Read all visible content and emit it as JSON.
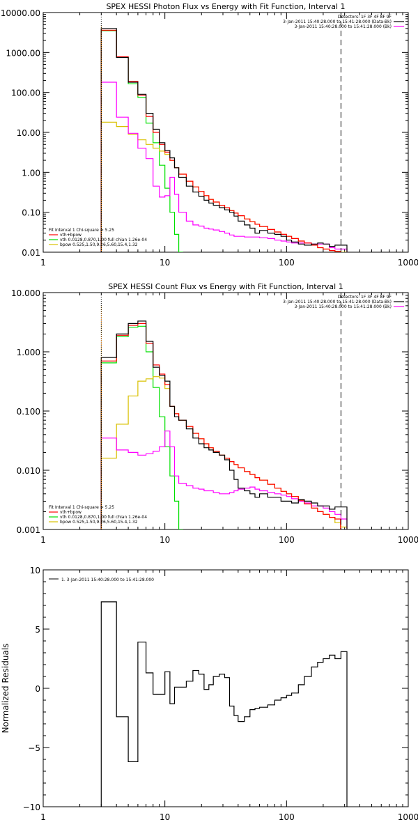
{
  "colors": {
    "data": "#000000",
    "total": "#ff0000",
    "vth": "#00e000",
    "bpow": "#d9c000",
    "background": "#ff00ff",
    "marker_start": "#ff8800"
  },
  "chart_data": [
    {
      "type": "line",
      "title": "SPEX HESSI Photon Flux vs Energy with Fit Function, Interval 1",
      "xscale": "log",
      "yscale": "log",
      "xlim": [
        1,
        1000
      ],
      "ylim": [
        0.01,
        10000
      ],
      "xticks": [
        1,
        10,
        100,
        1000
      ],
      "xtick_labels": [
        "1",
        "10",
        "100",
        "1000"
      ],
      "yticks": [
        0.01,
        0.1,
        1,
        10,
        100,
        1000,
        10000
      ],
      "ytick_labels": [
        "0.01",
        "0.10",
        "1.00",
        "10.00",
        "100.00",
        "1000.00",
        "10000.00"
      ],
      "vlines": [
        {
          "x": 3,
          "style": "dotted"
        },
        {
          "x": 280,
          "style": "dashed"
        }
      ],
      "legend_top": [
        "Detectors: 1F 3F 4F 8F 9F",
        "3-Jan-2011 15:40:28.000 to 15:41:28.000 (Data-Bk)",
        "3-Jan-2011 15:40:28.000 to 15:41:28.000 (Bk)"
      ],
      "legend_bottom": [
        "Fit Interval 1    Chi-square = 5.25",
        "vth+bpow",
        "vth 0.0128,0.870,1.00  full chian 1.26e-04",
        "bpow 0.525,1.50,9.26,5.60,15.4,1.32"
      ],
      "series": [
        {
          "name": "Data-Bk",
          "color": "data",
          "x": [
            3,
            4,
            5,
            6,
            7,
            8,
            9,
            10,
            11,
            12,
            13,
            15,
            17,
            19,
            21,
            23,
            25,
            28,
            31,
            34,
            37,
            40,
            45,
            50,
            55,
            60,
            70,
            80,
            90,
            100,
            110,
            125,
            140,
            160,
            180,
            200,
            225,
            250,
            280
          ],
          "y": [
            4000,
            750,
            180,
            90,
            30,
            12,
            5.5,
            3.5,
            2.3,
            1.3,
            0.75,
            0.45,
            0.32,
            0.25,
            0.2,
            0.17,
            0.15,
            0.13,
            0.115,
            0.1,
            0.08,
            0.06,
            0.048,
            0.04,
            0.03,
            0.035,
            0.03,
            0.028,
            0.025,
            0.02,
            0.018,
            0.016,
            0.015,
            0.016,
            0.017,
            0.016,
            0.014,
            0.015,
            0.015
          ]
        },
        {
          "name": "vth+bpow",
          "color": "total",
          "x": [
            3,
            4,
            5,
            6,
            7,
            8,
            9,
            10,
            11,
            12,
            13,
            15,
            17,
            19,
            21,
            23,
            25,
            28,
            31,
            34,
            37,
            40,
            45,
            50,
            55,
            60,
            70,
            80,
            90,
            100,
            110,
            125,
            140,
            160,
            180,
            200,
            225,
            250
          ],
          "y": [
            3600,
            780,
            190,
            85,
            25,
            10,
            5.0,
            3.2,
            2.0,
            1.3,
            0.9,
            0.6,
            0.43,
            0.33,
            0.26,
            0.21,
            0.18,
            0.15,
            0.13,
            0.11,
            0.095,
            0.082,
            0.068,
            0.058,
            0.05,
            0.044,
            0.037,
            0.032,
            0.028,
            0.025,
            0.022,
            0.019,
            0.017,
            0.015,
            0.013,
            0.012,
            0.011,
            0.0105
          ]
        },
        {
          "name": "vth",
          "color": "vth",
          "x": [
            3,
            4,
            5,
            6,
            7,
            8,
            9,
            10,
            11,
            12,
            13,
            14
          ],
          "y": [
            3500,
            760,
            165,
            75,
            17,
            5.5,
            1.5,
            0.4,
            0.1,
            0.028,
            0.01,
            0.001
          ]
        },
        {
          "name": "bpow",
          "color": "bpow",
          "x": [
            3,
            4,
            5,
            6,
            7,
            8,
            9,
            10,
            11,
            12,
            13,
            15,
            17,
            19,
            21,
            23,
            25,
            28,
            31,
            34,
            37,
            40,
            45,
            50,
            55,
            60,
            70,
            80,
            90,
            100,
            110,
            125,
            140,
            160,
            180,
            200,
            225,
            250,
            280
          ],
          "y": [
            18,
            14,
            9.0,
            6.5,
            5.0,
            4.0,
            3.4,
            2.8,
            2.0,
            1.3,
            0.9,
            0.6,
            0.43,
            0.33,
            0.26,
            0.21,
            0.18,
            0.15,
            0.13,
            0.11,
            0.095,
            0.082,
            0.068,
            0.058,
            0.05,
            0.044,
            0.037,
            0.032,
            0.028,
            0.025,
            0.022,
            0.019,
            0.017,
            0.015,
            0.013,
            0.012,
            0.011,
            0.0105,
            0.01
          ]
        },
        {
          "name": "Bk",
          "color": "background",
          "x": [
            3,
            4,
            5,
            6,
            7,
            8,
            9,
            10,
            11,
            12,
            13,
            15,
            17,
            19,
            21,
            23,
            25,
            28,
            31,
            34,
            37,
            40,
            45,
            50,
            55,
            60,
            70,
            80,
            90,
            100,
            110,
            125,
            140,
            160,
            180,
            200,
            225,
            250,
            280
          ],
          "y": [
            180,
            24,
            9.5,
            4.0,
            2.2,
            0.45,
            0.24,
            0.26,
            0.75,
            0.28,
            0.1,
            0.06,
            0.048,
            0.045,
            0.04,
            0.038,
            0.036,
            0.033,
            0.03,
            0.027,
            0.025,
            0.025,
            0.024,
            0.024,
            0.024,
            0.023,
            0.022,
            0.02,
            0.019,
            0.018,
            0.017,
            0.017,
            0.017,
            0.016,
            0.016,
            0.016,
            0.013,
            0.012,
            0.012
          ]
        }
      ]
    },
    {
      "type": "line",
      "title": "SPEX HESSI Count Flux vs Energy with Fit Function, Interval 1",
      "xscale": "log",
      "yscale": "log",
      "xlim": [
        1,
        1000
      ],
      "ylim": [
        0.001,
        10
      ],
      "xticks": [
        1,
        10,
        100,
        1000
      ],
      "xtick_labels": [
        "1",
        "10",
        "100",
        "1000"
      ],
      "yticks": [
        0.001,
        0.01,
        0.1,
        1,
        10
      ],
      "ytick_labels": [
        "0.001",
        "0.010",
        "0.100",
        "1.000",
        "10.000"
      ],
      "vlines": [
        {
          "x": 3,
          "style": "dotted"
        },
        {
          "x": 280,
          "style": "dashed"
        }
      ],
      "legend_top": [
        "Detectors: 1F 3F 4F 8F 9F",
        "3-Jan-2011 15:40:28.000 to 15:41:28.000 (Data-Bk)",
        "3-Jan-2011 15:40:28.000 to 15:41:28.000 (Bk)"
      ],
      "legend_bottom": [
        "Fit Interval 1    Chi-square = 5.25",
        "vth+bpow",
        "vth 0.0128,0.870,1.00  full chian 1.26e-04",
        "bpow 0.525,1.50,9.26,5.60,15.4,1.32"
      ],
      "series": [
        {
          "name": "Data-Bk",
          "color": "data",
          "x": [
            3,
            4,
            5,
            6,
            7,
            8,
            9,
            10,
            11,
            12,
            13,
            15,
            17,
            19,
            21,
            23,
            25,
            28,
            31,
            34,
            37,
            40,
            45,
            50,
            55,
            60,
            70,
            80,
            90,
            100,
            110,
            125,
            140,
            160,
            180,
            200,
            225,
            250,
            280
          ],
          "y": [
            0.8,
            2.0,
            3.0,
            3.3,
            1.5,
            0.55,
            0.4,
            0.32,
            0.12,
            0.08,
            0.07,
            0.05,
            0.035,
            0.028,
            0.024,
            0.022,
            0.02,
            0.018,
            0.015,
            0.01,
            0.007,
            0.005,
            0.0045,
            0.004,
            0.0035,
            0.004,
            0.0035,
            0.0035,
            0.003,
            0.003,
            0.0028,
            0.0032,
            0.003,
            0.0028,
            0.0025,
            0.0025,
            0.0022,
            0.0024,
            0.0024
          ]
        },
        {
          "name": "vth+bpow",
          "color": "total",
          "x": [
            3,
            4,
            5,
            6,
            7,
            8,
            9,
            10,
            11,
            12,
            13,
            15,
            17,
            19,
            21,
            23,
            25,
            28,
            31,
            34,
            37,
            40,
            45,
            50,
            55,
            60,
            70,
            80,
            90,
            100,
            110,
            125,
            140,
            160,
            180,
            200,
            225,
            250
          ],
          "y": [
            0.7,
            1.9,
            2.8,
            3.0,
            1.4,
            0.6,
            0.42,
            0.28,
            0.12,
            0.09,
            0.07,
            0.055,
            0.042,
            0.034,
            0.028,
            0.024,
            0.021,
            0.018,
            0.016,
            0.014,
            0.0125,
            0.011,
            0.0095,
            0.0085,
            0.0075,
            0.0068,
            0.0058,
            0.005,
            0.0044,
            0.004,
            0.0036,
            0.0031,
            0.0027,
            0.0023,
            0.002,
            0.0018,
            0.0016,
            0.0015
          ]
        },
        {
          "name": "vth",
          "color": "vth",
          "x": [
            3,
            4,
            5,
            6,
            7,
            8,
            9,
            10,
            11,
            12,
            13,
            14
          ],
          "y": [
            0.65,
            1.8,
            2.6,
            2.7,
            1.0,
            0.25,
            0.08,
            0.025,
            0.008,
            0.003,
            0.001,
            0.0001
          ]
        },
        {
          "name": "bpow",
          "color": "bpow",
          "x": [
            3,
            4,
            5,
            6,
            7,
            8,
            9,
            10,
            11,
            12,
            13,
            15,
            17,
            19,
            21,
            23,
            25,
            28,
            31,
            34,
            37,
            40,
            45,
            50,
            55,
            60,
            70,
            80,
            90,
            100,
            110,
            125,
            140,
            160,
            180,
            200,
            225,
            250,
            280
          ],
          "y": [
            0.016,
            0.06,
            0.18,
            0.32,
            0.35,
            0.38,
            0.36,
            0.24,
            0.12,
            0.09,
            0.07,
            0.055,
            0.042,
            0.034,
            0.028,
            0.024,
            0.021,
            0.018,
            0.016,
            0.014,
            0.0125,
            0.011,
            0.0095,
            0.0085,
            0.0075,
            0.0068,
            0.0058,
            0.005,
            0.0044,
            0.004,
            0.0036,
            0.0031,
            0.0027,
            0.0023,
            0.002,
            0.0018,
            0.0016,
            0.0013,
            0.0011
          ]
        },
        {
          "name": "Bk",
          "color": "background",
          "x": [
            3,
            4,
            5,
            6,
            7,
            8,
            9,
            10,
            11,
            12,
            13,
            15,
            17,
            19,
            21,
            23,
            25,
            28,
            31,
            34,
            37,
            40,
            45,
            50,
            55,
            60,
            70,
            80,
            90,
            100,
            110,
            125,
            140,
            160,
            180,
            200,
            225,
            250,
            280
          ],
          "y": [
            0.035,
            0.022,
            0.02,
            0.018,
            0.019,
            0.021,
            0.025,
            0.046,
            0.025,
            0.008,
            0.006,
            0.0055,
            0.005,
            0.0048,
            0.0045,
            0.0045,
            0.0042,
            0.004,
            0.004,
            0.0042,
            0.0045,
            0.0048,
            0.005,
            0.0052,
            0.0048,
            0.0045,
            0.0042,
            0.004,
            0.0038,
            0.0036,
            0.0033,
            0.003,
            0.0028,
            0.0025,
            0.0025,
            0.0023,
            0.002,
            0.0018,
            0.0015
          ]
        }
      ]
    },
    {
      "type": "line",
      "title": "",
      "xscale": "log",
      "yscale": "linear",
      "xlim": [
        1,
        1000
      ],
      "ylim": [
        -10,
        10
      ],
      "xticks": [
        1,
        10,
        100,
        1000
      ],
      "xtick_labels": [
        "1",
        "10",
        "100",
        "1000"
      ],
      "yticks": [
        -10,
        -5,
        0,
        5,
        10
      ],
      "ytick_labels": [
        "−10",
        "−5",
        "0",
        "5",
        "10"
      ],
      "ylabel": "Normalized Residuals",
      "vlines": [],
      "legend_top": [
        "1.  3-Jan-2011 15:40:28.000 to 15:41:28.000"
      ],
      "legend_bottom": [],
      "series": [
        {
          "name": "1.  3-Jan-2011 15:40:28.000 to 15:41:28.000",
          "color": "data",
          "x": [
            3,
            4,
            5,
            6,
            7,
            8,
            9,
            10,
            11,
            12,
            13,
            15,
            17,
            19,
            21,
            23,
            25,
            28,
            31,
            34,
            37,
            40,
            45,
            50,
            55,
            60,
            70,
            80,
            90,
            100,
            110,
            125,
            140,
            160,
            180,
            200,
            225,
            250,
            280
          ],
          "y": [
            7.3,
            -2.4,
            -6.2,
            3.9,
            1.3,
            -0.5,
            -0.5,
            1.4,
            -1.3,
            0.1,
            0.1,
            0.6,
            1.5,
            1.2,
            -0.1,
            0.3,
            1.0,
            1.2,
            0.9,
            -1.5,
            -2.3,
            -2.8,
            -2.4,
            -1.8,
            -1.7,
            -1.6,
            -1.4,
            -1.0,
            -0.8,
            -0.6,
            -0.4,
            0.3,
            1.0,
            1.8,
            2.2,
            2.5,
            2.8,
            2.5,
            3.1
          ]
        }
      ]
    }
  ]
}
